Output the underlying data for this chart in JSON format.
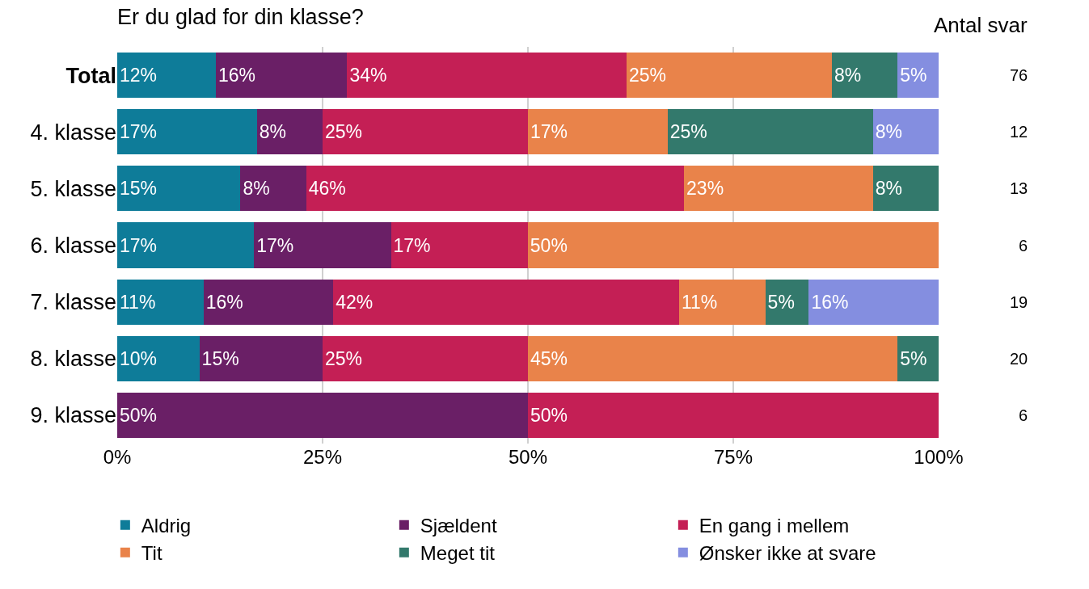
{
  "chart_data": {
    "type": "bar",
    "orientation": "horizontal",
    "stacked": true,
    "title": "Er du glad for din klasse?",
    "categories": [
      "Total",
      "4. klasse",
      "5. klasse",
      "6. klasse",
      "7. klasse",
      "8. klasse",
      "9. klasse"
    ],
    "series": [
      {
        "name": "Aldrig",
        "color": "#0e7c99",
        "values": [
          12,
          17,
          15,
          16.66,
          10.5,
          10,
          null
        ],
        "value_labels": [
          "12%",
          "17%",
          "15%",
          "17%",
          "11%",
          "10%",
          null
        ]
      },
      {
        "name": "Sjældent",
        "color": "#6a1f66",
        "values": [
          16,
          8,
          8,
          16.66,
          15.8,
          15,
          50
        ],
        "value_labels": [
          "16%",
          "8%",
          "8%",
          "17%",
          "16%",
          "15%",
          "50%"
        ]
      },
      {
        "name": "En gang i mellem",
        "color": "#c41f55",
        "values": [
          34,
          25,
          46,
          16.66,
          42.1,
          25,
          50
        ],
        "value_labels": [
          "34%",
          "25%",
          "46%",
          "17%",
          "42%",
          "25%",
          "50%"
        ]
      },
      {
        "name": "Tit",
        "color": "#e9834a",
        "values": [
          25,
          17,
          23,
          50,
          10.5,
          45,
          null
        ],
        "value_labels": [
          "25%",
          "17%",
          "23%",
          "50%",
          "11%",
          "45%",
          null
        ]
      },
      {
        "name": "Meget tit",
        "color": "#33796c",
        "values": [
          8,
          25,
          8,
          null,
          5.3,
          5,
          null
        ],
        "value_labels": [
          "8%",
          "25%",
          "8%",
          null,
          "5%",
          "5%",
          null
        ]
      },
      {
        "name": "Ønsker ikke at svare",
        "color": "#848ee0",
        "values": [
          5,
          8,
          null,
          null,
          15.8,
          null,
          null
        ],
        "value_labels": [
          "5%",
          "8%",
          null,
          null,
          "16%",
          null,
          null
        ]
      }
    ],
    "xlim": [
      0,
      100
    ],
    "xticks": [
      {
        "value": 0,
        "label": "0%"
      },
      {
        "value": 25,
        "label": "25%"
      },
      {
        "value": 50,
        "label": "50%"
      },
      {
        "value": 75,
        "label": "75%"
      },
      {
        "value": 100,
        "label": "100%"
      }
    ],
    "grid": "x",
    "legend": "bottom",
    "annotations": [
      "Antal svar",
      "76",
      "12",
      "13",
      "6",
      "19",
      "20",
      "6"
    ]
  }
}
